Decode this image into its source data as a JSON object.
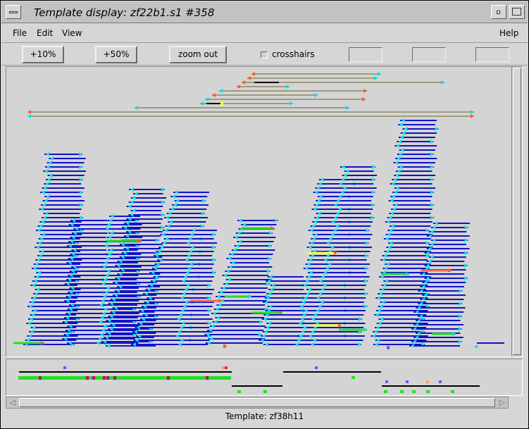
{
  "window": {
    "title": "Template display: zf22b1.s1 #358",
    "controls": [
      {
        "name": "window-menu-icon",
        "glyph": "▭"
      },
      {
        "name": "minimize-icon",
        "glyph": "▫"
      }
    ]
  },
  "menubar": {
    "file": "File",
    "edit": "Edit",
    "view": "View",
    "help": "Help"
  },
  "toolbar": {
    "zoom10": "+10%",
    "zoom50": "+50%",
    "zoom_out": "zoom out",
    "crosshairs_label": "crosshairs",
    "crosshairs_checked": false,
    "field1": "",
    "field2": "",
    "field3": ""
  },
  "colors": {
    "reading": "#1212c8",
    "tag_cyan": "#00e0e8",
    "tag_orange": "#ff5a2a",
    "template_line": "#a09a80",
    "good_green": "#22e022",
    "yellow": "#ffff30",
    "salmon": "#f07060",
    "black": "#000000",
    "purple_dot": "#6a5aff"
  },
  "status": {
    "template_label": "Template: zf38h11"
  },
  "scrollbar": {
    "left_arrow": "◁",
    "right_arrow": "▷"
  }
}
